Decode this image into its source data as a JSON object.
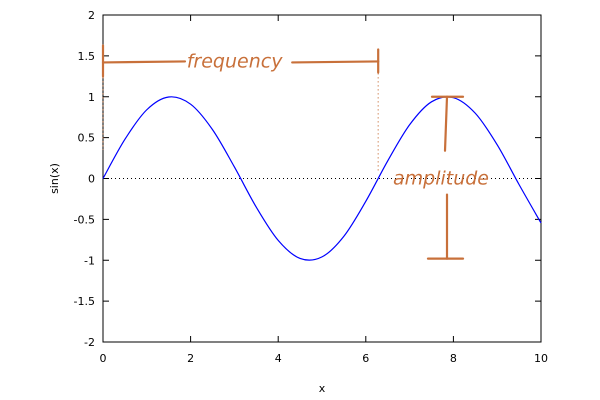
{
  "chart_data": {
    "type": "line",
    "xlabel": "x",
    "ylabel": "sin(x)",
    "xlim": [
      0,
      10
    ],
    "ylim": [
      -2,
      2
    ],
    "xticks": [
      0,
      2,
      4,
      6,
      8,
      10
    ],
    "yticks": [
      -2,
      -1.5,
      -1,
      -0.5,
      0,
      0.5,
      1,
      1.5,
      2
    ],
    "grid": false,
    "zero_line": "dotted",
    "series": [
      {
        "function": "sin(x)",
        "color": "#0000ff",
        "x": [
          0,
          0.5,
          1,
          1.5,
          2,
          2.5,
          3,
          3.5,
          4,
          4.5,
          5,
          5.5,
          6,
          6.5,
          7,
          7.5,
          8,
          8.5,
          9,
          9.5,
          10
        ],
        "values": [
          0,
          0.479,
          0.841,
          0.997,
          0.909,
          0.598,
          0.141,
          -0.351,
          -0.757,
          -0.978,
          -0.959,
          -0.706,
          -0.279,
          0.215,
          0.657,
          0.938,
          0.989,
          0.798,
          0.412,
          -0.075,
          -0.544
        ]
      }
    ],
    "annotations": [
      {
        "text": "frequency",
        "color": "#c8703a",
        "from_x": 0,
        "to_x": 6.283,
        "at_y": 1.42
      },
      {
        "text": "amplitude",
        "color": "#c8703a",
        "at_x": 7.854,
        "from_y": -0.98,
        "to_y": 1.0
      }
    ]
  }
}
